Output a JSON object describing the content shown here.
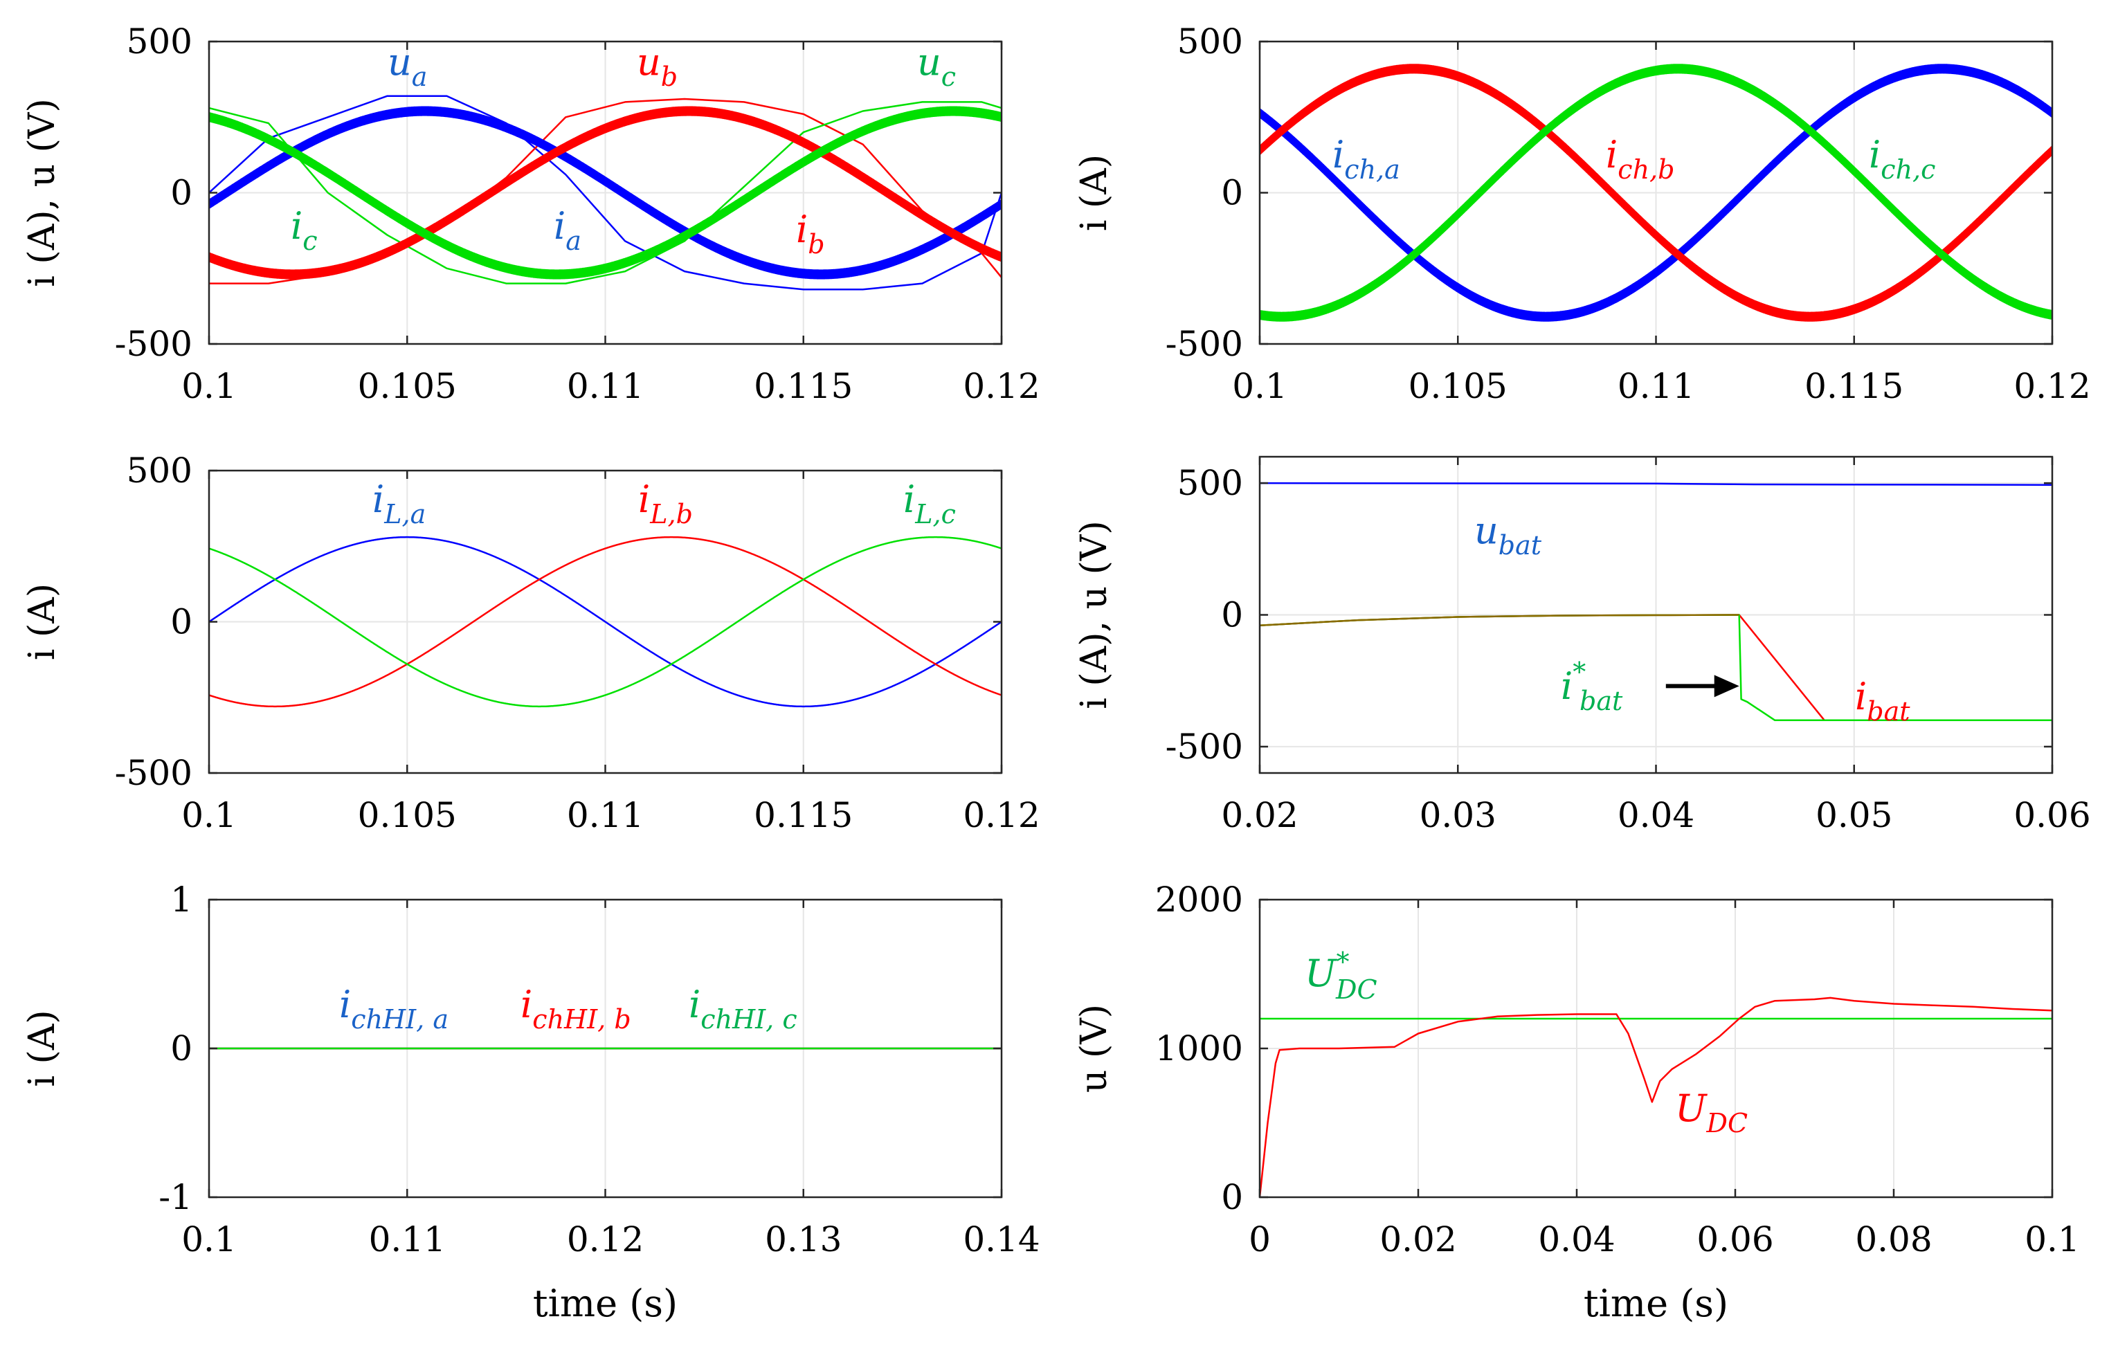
{
  "chart_data": [
    {
      "id": "p1",
      "type": "line",
      "xlabel": "",
      "ylabel": "i (A), u (V)",
      "xlim": [
        0.1,
        0.12
      ],
      "ylim": [
        -500,
        500
      ],
      "xticks": [
        0.1,
        0.105,
        0.11,
        0.115,
        0.12
      ],
      "xtick_labels": [
        "0.1",
        "0.105",
        "0.11",
        "0.115",
        "0.12"
      ],
      "yticks": [
        -500,
        0,
        500
      ],
      "ytick_labels": [
        "-500",
        "0",
        "500"
      ],
      "grid": true,
      "series": [
        {
          "name": "u_a",
          "kind": "voltage",
          "color": "#0000ff",
          "x": [
            0.1,
            0.1015,
            0.103,
            0.1045,
            0.106,
            0.1075,
            0.109,
            0.1105,
            0.112,
            0.1135,
            0.115,
            0.1165,
            0.118,
            0.1195,
            0.12
          ],
          "values": [
            0,
            180,
            250,
            320,
            320,
            230,
            60,
            -160,
            -260,
            -300,
            -320,
            -320,
            -300,
            -200,
            0
          ]
        },
        {
          "name": "u_b",
          "kind": "voltage",
          "color": "#ff0000",
          "x": [
            0.1,
            0.1015,
            0.103,
            0.1045,
            0.106,
            0.1075,
            0.109,
            0.1105,
            0.112,
            0.1135,
            0.115,
            0.1165,
            0.118,
            0.1195,
            0.12
          ],
          "values": [
            -300,
            -300,
            -270,
            -200,
            -100,
            50,
            250,
            300,
            310,
            300,
            260,
            160,
            -60,
            -200,
            -280
          ]
        },
        {
          "name": "u_c",
          "kind": "voltage",
          "color": "#00e000",
          "x": [
            0.1,
            0.1015,
            0.103,
            0.1045,
            0.106,
            0.1075,
            0.109,
            0.1105,
            0.112,
            0.1135,
            0.115,
            0.1165,
            0.118,
            0.1195,
            0.12
          ],
          "values": [
            280,
            230,
            0,
            -140,
            -250,
            -300,
            -300,
            -260,
            -160,
            20,
            200,
            270,
            300,
            300,
            280
          ]
        },
        {
          "name": "i_a",
          "kind": "current",
          "color": "#0000ff",
          "frequency_hz": 50,
          "amplitude": 270,
          "phase_deg": -8,
          "ripple": 14
        },
        {
          "name": "i_b",
          "kind": "current",
          "color": "#ff0000",
          "frequency_hz": 50,
          "amplitude": 270,
          "phase_deg": -128,
          "ripple": 14
        },
        {
          "name": "i_c",
          "kind": "current",
          "color": "#00e000",
          "frequency_hz": 50,
          "amplitude": 270,
          "phase_deg": 112,
          "ripple": 14
        }
      ]
    },
    {
      "id": "p2",
      "type": "line",
      "xlabel": "",
      "ylabel": "i (A)",
      "xlim": [
        0.1,
        0.12
      ],
      "ylim": [
        -500,
        500
      ],
      "xticks": [
        0.1,
        0.105,
        0.11,
        0.115,
        0.12
      ],
      "xtick_labels": [
        "0.1",
        "0.105",
        "0.11",
        "0.115",
        "0.12"
      ],
      "yticks": [
        -500,
        0,
        500
      ],
      "ytick_labels": [
        "-500",
        "0",
        "500"
      ],
      "grid": true,
      "series": [
        {
          "name": "i_ch,a",
          "color": "#0000ff",
          "frequency_hz": 50,
          "amplitude": 410,
          "phase_deg": 140,
          "ripple": 14
        },
        {
          "name": "i_ch,b",
          "color": "#ff0000",
          "frequency_hz": 50,
          "amplitude": 410,
          "phase_deg": 20,
          "ripple": 14
        },
        {
          "name": "i_ch,c",
          "color": "#00e000",
          "frequency_hz": 50,
          "amplitude": 410,
          "phase_deg": -100,
          "ripple": 14
        }
      ]
    },
    {
      "id": "p3",
      "type": "line",
      "xlabel": "",
      "ylabel": "i (A)",
      "xlim": [
        0.1,
        0.12
      ],
      "ylim": [
        -500,
        500
      ],
      "xticks": [
        0.1,
        0.105,
        0.11,
        0.115,
        0.12
      ],
      "xtick_labels": [
        "0.1",
        "0.105",
        "0.11",
        "0.115",
        "0.12"
      ],
      "yticks": [
        -500,
        0,
        500
      ],
      "ytick_labels": [
        "-500",
        "0",
        "500"
      ],
      "grid": true,
      "series": [
        {
          "name": "i_L,a",
          "color": "#0000ff",
          "frequency_hz": 50,
          "amplitude": 280,
          "phase_deg": 0,
          "ripple": 0
        },
        {
          "name": "i_L,b",
          "color": "#ff0000",
          "frequency_hz": 50,
          "amplitude": 280,
          "phase_deg": -120,
          "ripple": 0
        },
        {
          "name": "i_L,c",
          "color": "#00e000",
          "frequency_hz": 50,
          "amplitude": 280,
          "phase_deg": 120,
          "ripple": 0
        }
      ]
    },
    {
      "id": "p4",
      "type": "line",
      "xlabel": "",
      "ylabel": "i (A), u (V)",
      "xlim": [
        0.02,
        0.06
      ],
      "ylim": [
        -600,
        600
      ],
      "xticks": [
        0.02,
        0.03,
        0.04,
        0.05,
        0.06
      ],
      "xtick_labels": [
        "0.02",
        "0.03",
        "0.04",
        "0.05",
        "0.06"
      ],
      "yticks": [
        -500,
        0,
        500
      ],
      "ytick_labels": [
        "-500",
        "0",
        "500"
      ],
      "grid": true,
      "series": [
        {
          "name": "u_bat",
          "color": "#0000ff",
          "x": [
            0.02,
            0.04,
            0.045,
            0.06
          ],
          "values": [
            500,
            498,
            495,
            493
          ]
        },
        {
          "name": "i_bat",
          "color": "#ff0000",
          "x": [
            0.02,
            0.025,
            0.03,
            0.035,
            0.04,
            0.0442,
            0.0485,
            0.06
          ],
          "values": [
            -40,
            -20,
            -8,
            -3,
            -1,
            0,
            -400,
            -400
          ]
        },
        {
          "name": "i*_bat",
          "color": "#00e000",
          "x": [
            0.02,
            0.025,
            0.03,
            0.035,
            0.04,
            0.0442,
            0.0443,
            0.0446,
            0.046,
            0.06
          ],
          "values": [
            -40,
            -20,
            -8,
            -3,
            -1,
            0,
            -320,
            -330,
            -400,
            -400
          ]
        },
        {
          "name": "i_bat_overlap",
          "color": "#8b6a00",
          "x": [
            0.02,
            0.025,
            0.03,
            0.035,
            0.04,
            0.0442
          ],
          "values": [
            -40,
            -20,
            -8,
            -3,
            -1,
            0
          ]
        }
      ],
      "annotations": [
        {
          "type": "arrow",
          "color": "#000000",
          "from": [
            0.0405,
            -270
          ],
          "to": [
            0.0442,
            -270
          ]
        }
      ]
    },
    {
      "id": "p5",
      "type": "line",
      "xlabel": "time (s)",
      "ylabel": "i (A)",
      "xlim": [
        0.1,
        0.14
      ],
      "ylim": [
        -1,
        1
      ],
      "xticks": [
        0.1,
        0.11,
        0.12,
        0.13,
        0.14
      ],
      "xtick_labels": [
        "0.1",
        "0.11",
        "0.12",
        "0.13",
        "0.14"
      ],
      "yticks": [
        -1,
        0,
        1
      ],
      "ytick_labels": [
        "-1",
        "0",
        "1"
      ],
      "grid": true,
      "series": [
        {
          "name": "i_chHI,a",
          "color": "#0000ff",
          "x": [
            0.1,
            0.14
          ],
          "values": [
            0,
            0
          ]
        },
        {
          "name": "i_chHI,b",
          "color": "#ff0000",
          "x": [
            0.1,
            0.14
          ],
          "values": [
            0,
            0
          ]
        },
        {
          "name": "i_chHI,c",
          "color": "#00e000",
          "x": [
            0.1,
            0.14
          ],
          "values": [
            0,
            0
          ]
        }
      ]
    },
    {
      "id": "p6",
      "type": "line",
      "xlabel": "time (s)",
      "ylabel": "u (V)",
      "xlim": [
        0,
        0.1
      ],
      "ylim": [
        0,
        2000
      ],
      "xticks": [
        0,
        0.02,
        0.04,
        0.06,
        0.08,
        0.1
      ],
      "xtick_labels": [
        "0",
        "0.02",
        "0.04",
        "0.06",
        "0.08",
        "0.1"
      ],
      "yticks": [
        0,
        1000,
        2000
      ],
      "ytick_labels": [
        "0",
        "1000",
        "2000"
      ],
      "grid": true,
      "series": [
        {
          "name": "U*_DC",
          "color": "#00e000",
          "x": [
            0,
            0.1
          ],
          "values": [
            1200,
            1200
          ]
        },
        {
          "name": "U_DC",
          "color": "#ff0000",
          "x": [
            0,
            0.001,
            0.002,
            0.0025,
            0.005,
            0.01,
            0.017,
            0.02,
            0.025,
            0.03,
            0.035,
            0.04,
            0.045,
            0.0465,
            0.0475,
            0.0485,
            0.0495,
            0.0505,
            0.052,
            0.055,
            0.058,
            0.0605,
            0.0625,
            0.065,
            0.07,
            0.072,
            0.075,
            0.08,
            0.085,
            0.09,
            0.095,
            0.1
          ],
          "values": [
            0,
            500,
            900,
            990,
            1000,
            1000,
            1010,
            1100,
            1180,
            1215,
            1225,
            1230,
            1230,
            1100,
            950,
            800,
            640,
            780,
            860,
            960,
            1080,
            1200,
            1280,
            1320,
            1330,
            1340,
            1320,
            1300,
            1290,
            1280,
            1265,
            1255
          ]
        }
      ]
    }
  ],
  "annotations": {
    "p1": {
      "u_a": {
        "main": "u",
        "sub": "a"
      },
      "u_b": {
        "main": "u",
        "sub": "b"
      },
      "u_c": {
        "main": "u",
        "sub": "c"
      },
      "i_a": {
        "main": "i",
        "sub": "a"
      },
      "i_b": {
        "main": "i",
        "sub": "b"
      },
      "i_c": {
        "main": "i",
        "sub": "c"
      }
    },
    "p2": {
      "i_ch_a": {
        "main": "i",
        "sub": "ch,a"
      },
      "i_ch_b": {
        "main": "i",
        "sub": "ch,b"
      },
      "i_ch_c": {
        "main": "i",
        "sub": "ch,c"
      }
    },
    "p3": {
      "i_L_a": {
        "main": "i",
        "sub": "L,a"
      },
      "i_L_b": {
        "main": "i",
        "sub": "L,b"
      },
      "i_L_c": {
        "main": "i",
        "sub": "L,c"
      }
    },
    "p4": {
      "u_bat": {
        "main": "u",
        "sub": "bat"
      },
      "i_bat_ref": {
        "main": "i",
        "sup": "*",
        "sub": "bat"
      },
      "i_bat": {
        "main": "i",
        "sub": "bat"
      }
    },
    "p5": {
      "i_chHI_a": {
        "main": "i",
        "sub": "chHI, a"
      },
      "i_chHI_b": {
        "main": "i",
        "sub": "chHI, b"
      },
      "i_chHI_c": {
        "main": "i",
        "sub": "chHI, c"
      }
    },
    "p6": {
      "U_DC_ref": {
        "main": "U",
        "sup": "*",
        "sub": "DC"
      },
      "U_DC": {
        "main": "U",
        "sub": "DC"
      }
    }
  },
  "colors": {
    "blue": "#0000ff",
    "red": "#ff0000",
    "green": "#00e000",
    "label_blue": "#1a62c8",
    "label_red": "#ff0000",
    "label_green": "#00b050",
    "grid": "#e6e6e6",
    "axis": "#262626",
    "overlap": "#8b6a00"
  }
}
